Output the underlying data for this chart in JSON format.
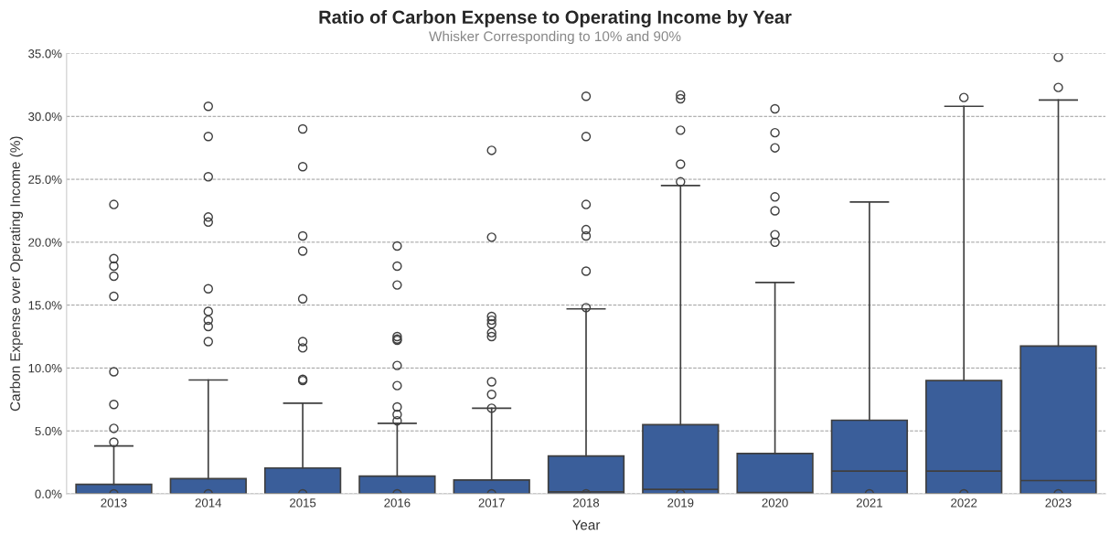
{
  "chart_data": {
    "type": "box",
    "title": "Ratio of Carbon Expense to Operating Income by Year",
    "subtitle": "Whisker Corresponding to 10% and 90%",
    "xlabel": "Year",
    "ylabel": "Carbon Expense over Operating Income (%)",
    "categories": [
      "2013",
      "2014",
      "2015",
      "2016",
      "2017",
      "2018",
      "2019",
      "2020",
      "2021",
      "2022",
      "2023"
    ],
    "color": "#3a5e9a",
    "boxes": [
      {
        "low": 0,
        "q1": 0,
        "median": 0,
        "q3": 0.75,
        "high": 3.8,
        "outliers": [
          23.0,
          18.7,
          18.1,
          17.3,
          15.7,
          9.7,
          7.1,
          5.2,
          4.1,
          0
        ]
      },
      {
        "low": 0,
        "q1": 0,
        "median": 0,
        "q3": 1.2,
        "high": 9.05,
        "outliers": [
          30.8,
          28.4,
          25.2,
          22.0,
          21.6,
          16.3,
          14.5,
          13.8,
          13.3,
          12.1,
          0
        ]
      },
      {
        "low": 0,
        "q1": 0,
        "median": 0,
        "q3": 2.05,
        "high": 7.2,
        "outliers": [
          29.0,
          26.0,
          20.5,
          19.3,
          15.5,
          12.1,
          11.6,
          9.1,
          9.0,
          0
        ]
      },
      {
        "low": 0,
        "q1": 0,
        "median": 0,
        "q3": 1.4,
        "high": 5.6,
        "outliers": [
          19.7,
          18.1,
          16.6,
          12.5,
          12.3,
          12.2,
          10.2,
          8.6,
          6.9,
          6.3,
          5.8,
          0
        ]
      },
      {
        "low": 0,
        "q1": 0,
        "median": 0,
        "q3": 1.1,
        "high": 6.8,
        "outliers": [
          27.3,
          20.4,
          14.1,
          13.8,
          13.5,
          12.8,
          12.5,
          8.9,
          7.9,
          6.8,
          0
        ]
      },
      {
        "low": 0,
        "q1": 0,
        "median": 0.15,
        "q3": 3.0,
        "high": 14.7,
        "outliers": [
          31.6,
          28.4,
          23.0,
          21.0,
          20.5,
          17.7,
          14.8,
          0
        ]
      },
      {
        "low": 0,
        "q1": 0,
        "median": 0.35,
        "q3": 5.5,
        "high": 24.5,
        "outliers": [
          31.7,
          31.4,
          28.9,
          26.2,
          24.8,
          0
        ]
      },
      {
        "low": 0,
        "q1": 0,
        "median": 0.1,
        "q3": 3.2,
        "high": 16.8,
        "outliers": [
          30.6,
          28.7,
          27.5,
          23.6,
          22.5,
          20.6,
          20.0
        ]
      },
      {
        "low": 0,
        "q1": 0,
        "median": 1.8,
        "q3": 5.85,
        "high": 23.2,
        "outliers": [
          0
        ]
      },
      {
        "low": 0,
        "q1": 0,
        "median": 1.8,
        "q3": 9.0,
        "high": 30.8,
        "outliers": [
          31.5,
          0
        ]
      },
      {
        "low": 0,
        "q1": 0,
        "median": 1.05,
        "q3": 11.75,
        "high": 31.3,
        "outliers": [
          34.7,
          32.3,
          0
        ]
      }
    ],
    "ylim": [
      0,
      35
    ],
    "yticks": [
      {
        "value": 0,
        "label": "0.0%"
      },
      {
        "value": 5,
        "label": "5.0%"
      },
      {
        "value": 10,
        "label": "10.0%"
      },
      {
        "value": 15,
        "label": "15.0%"
      },
      {
        "value": 20,
        "label": "20.0%"
      },
      {
        "value": 25,
        "label": "25.0%"
      },
      {
        "value": 30,
        "label": "30.0%"
      },
      {
        "value": 35,
        "label": "35.0%"
      }
    ],
    "grid": "y"
  }
}
